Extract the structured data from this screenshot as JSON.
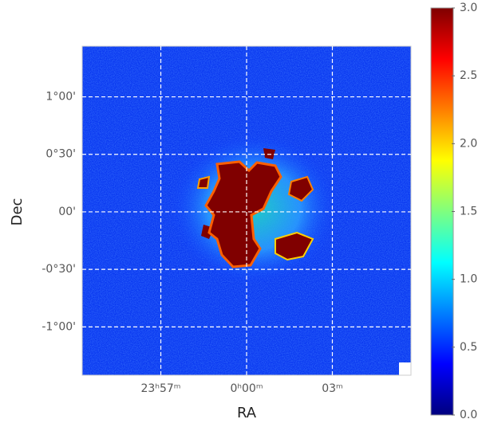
{
  "chart_data": {
    "type": "image",
    "xlabel": "RA",
    "ylabel": "Dec",
    "xlim": [
      -5.75,
      5.75
    ],
    "xticks": [
      {
        "value": -3,
        "label": "23ʰ57ᵐ"
      },
      {
        "value": 0,
        "label": "0ʰ00ᵐ"
      },
      {
        "value": 3,
        "label": "03ᵐ"
      }
    ],
    "ylim": [
      -1.42,
      1.44
    ],
    "yticks": [
      {
        "value": 1,
        "label": "1°00'"
      },
      {
        "value": 0.5,
        "label": "0°30'"
      },
      {
        "value": 0,
        "label": "00'"
      },
      {
        "value": -0.5,
        "label": "-0°30'"
      },
      {
        "value": -1,
        "label": "-1°00'"
      }
    ],
    "grid": true,
    "colormap": "jet",
    "clim": [
      0,
      3
    ],
    "cticks": [
      {
        "value": 0,
        "label": "0.0"
      },
      0.5,
      {
        "value": 1,
        "label": "1.0"
      },
      1.5,
      {
        "value": 2,
        "label": "2.0"
      },
      2.5,
      {
        "value": 3,
        "label": "3.0"
      }
    ]
  }
}
